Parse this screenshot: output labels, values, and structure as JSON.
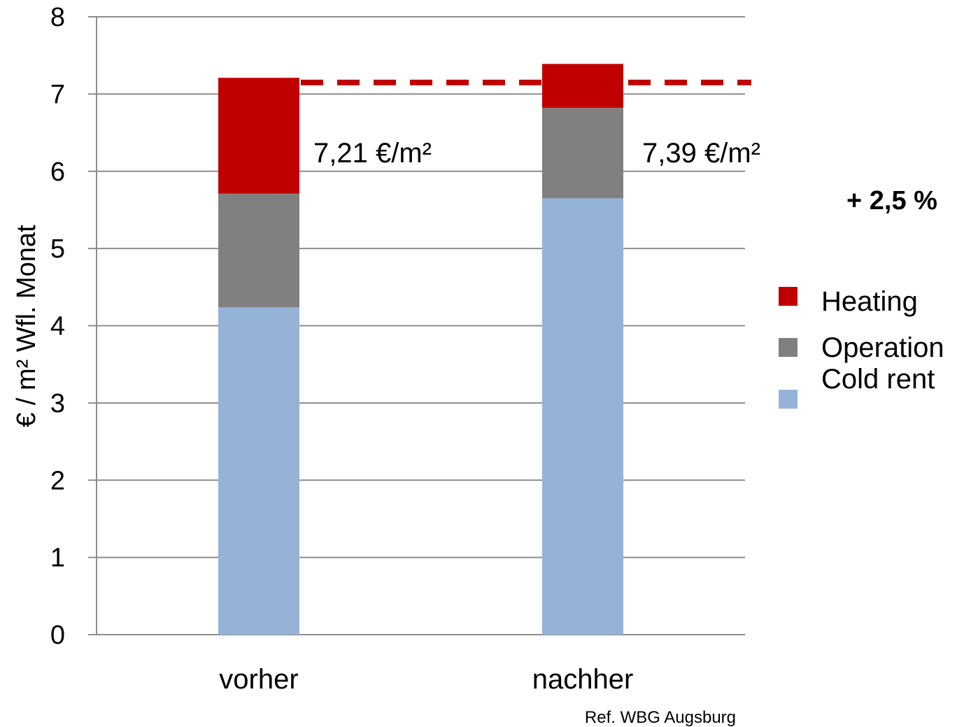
{
  "chart_data": {
    "type": "bar",
    "stacked": true,
    "categories": [
      "vorher",
      "nachher"
    ],
    "series": [
      {
        "name": "Cold rent",
        "color": "#95b3d7",
        "values": [
          4.24,
          5.65
        ]
      },
      {
        "name": "Operation",
        "color": "#808080",
        "values": [
          1.47,
          1.17
        ]
      },
      {
        "name": "Heating",
        "color": "#c00000",
        "values": [
          1.5,
          0.57
        ]
      }
    ],
    "totals": [
      "7,21 €/m²",
      "7,39 €/m²"
    ],
    "reference_line": {
      "value": 7.15,
      "color": "#c00000",
      "style": "dashed"
    },
    "change_label": "+ 2,5 %",
    "ylabel": "€ / m² Wfl. Monat",
    "xlabel": "",
    "ylim": [
      0,
      8
    ],
    "yticks": [
      "0",
      "1",
      "2",
      "3",
      "4",
      "5",
      "6",
      "7",
      "8"
    ],
    "grid": true,
    "legend": {
      "position": "right",
      "order": [
        "Heating",
        "Operation",
        "Cold rent"
      ]
    },
    "source_note": "Ref. WBG Augsburg"
  }
}
